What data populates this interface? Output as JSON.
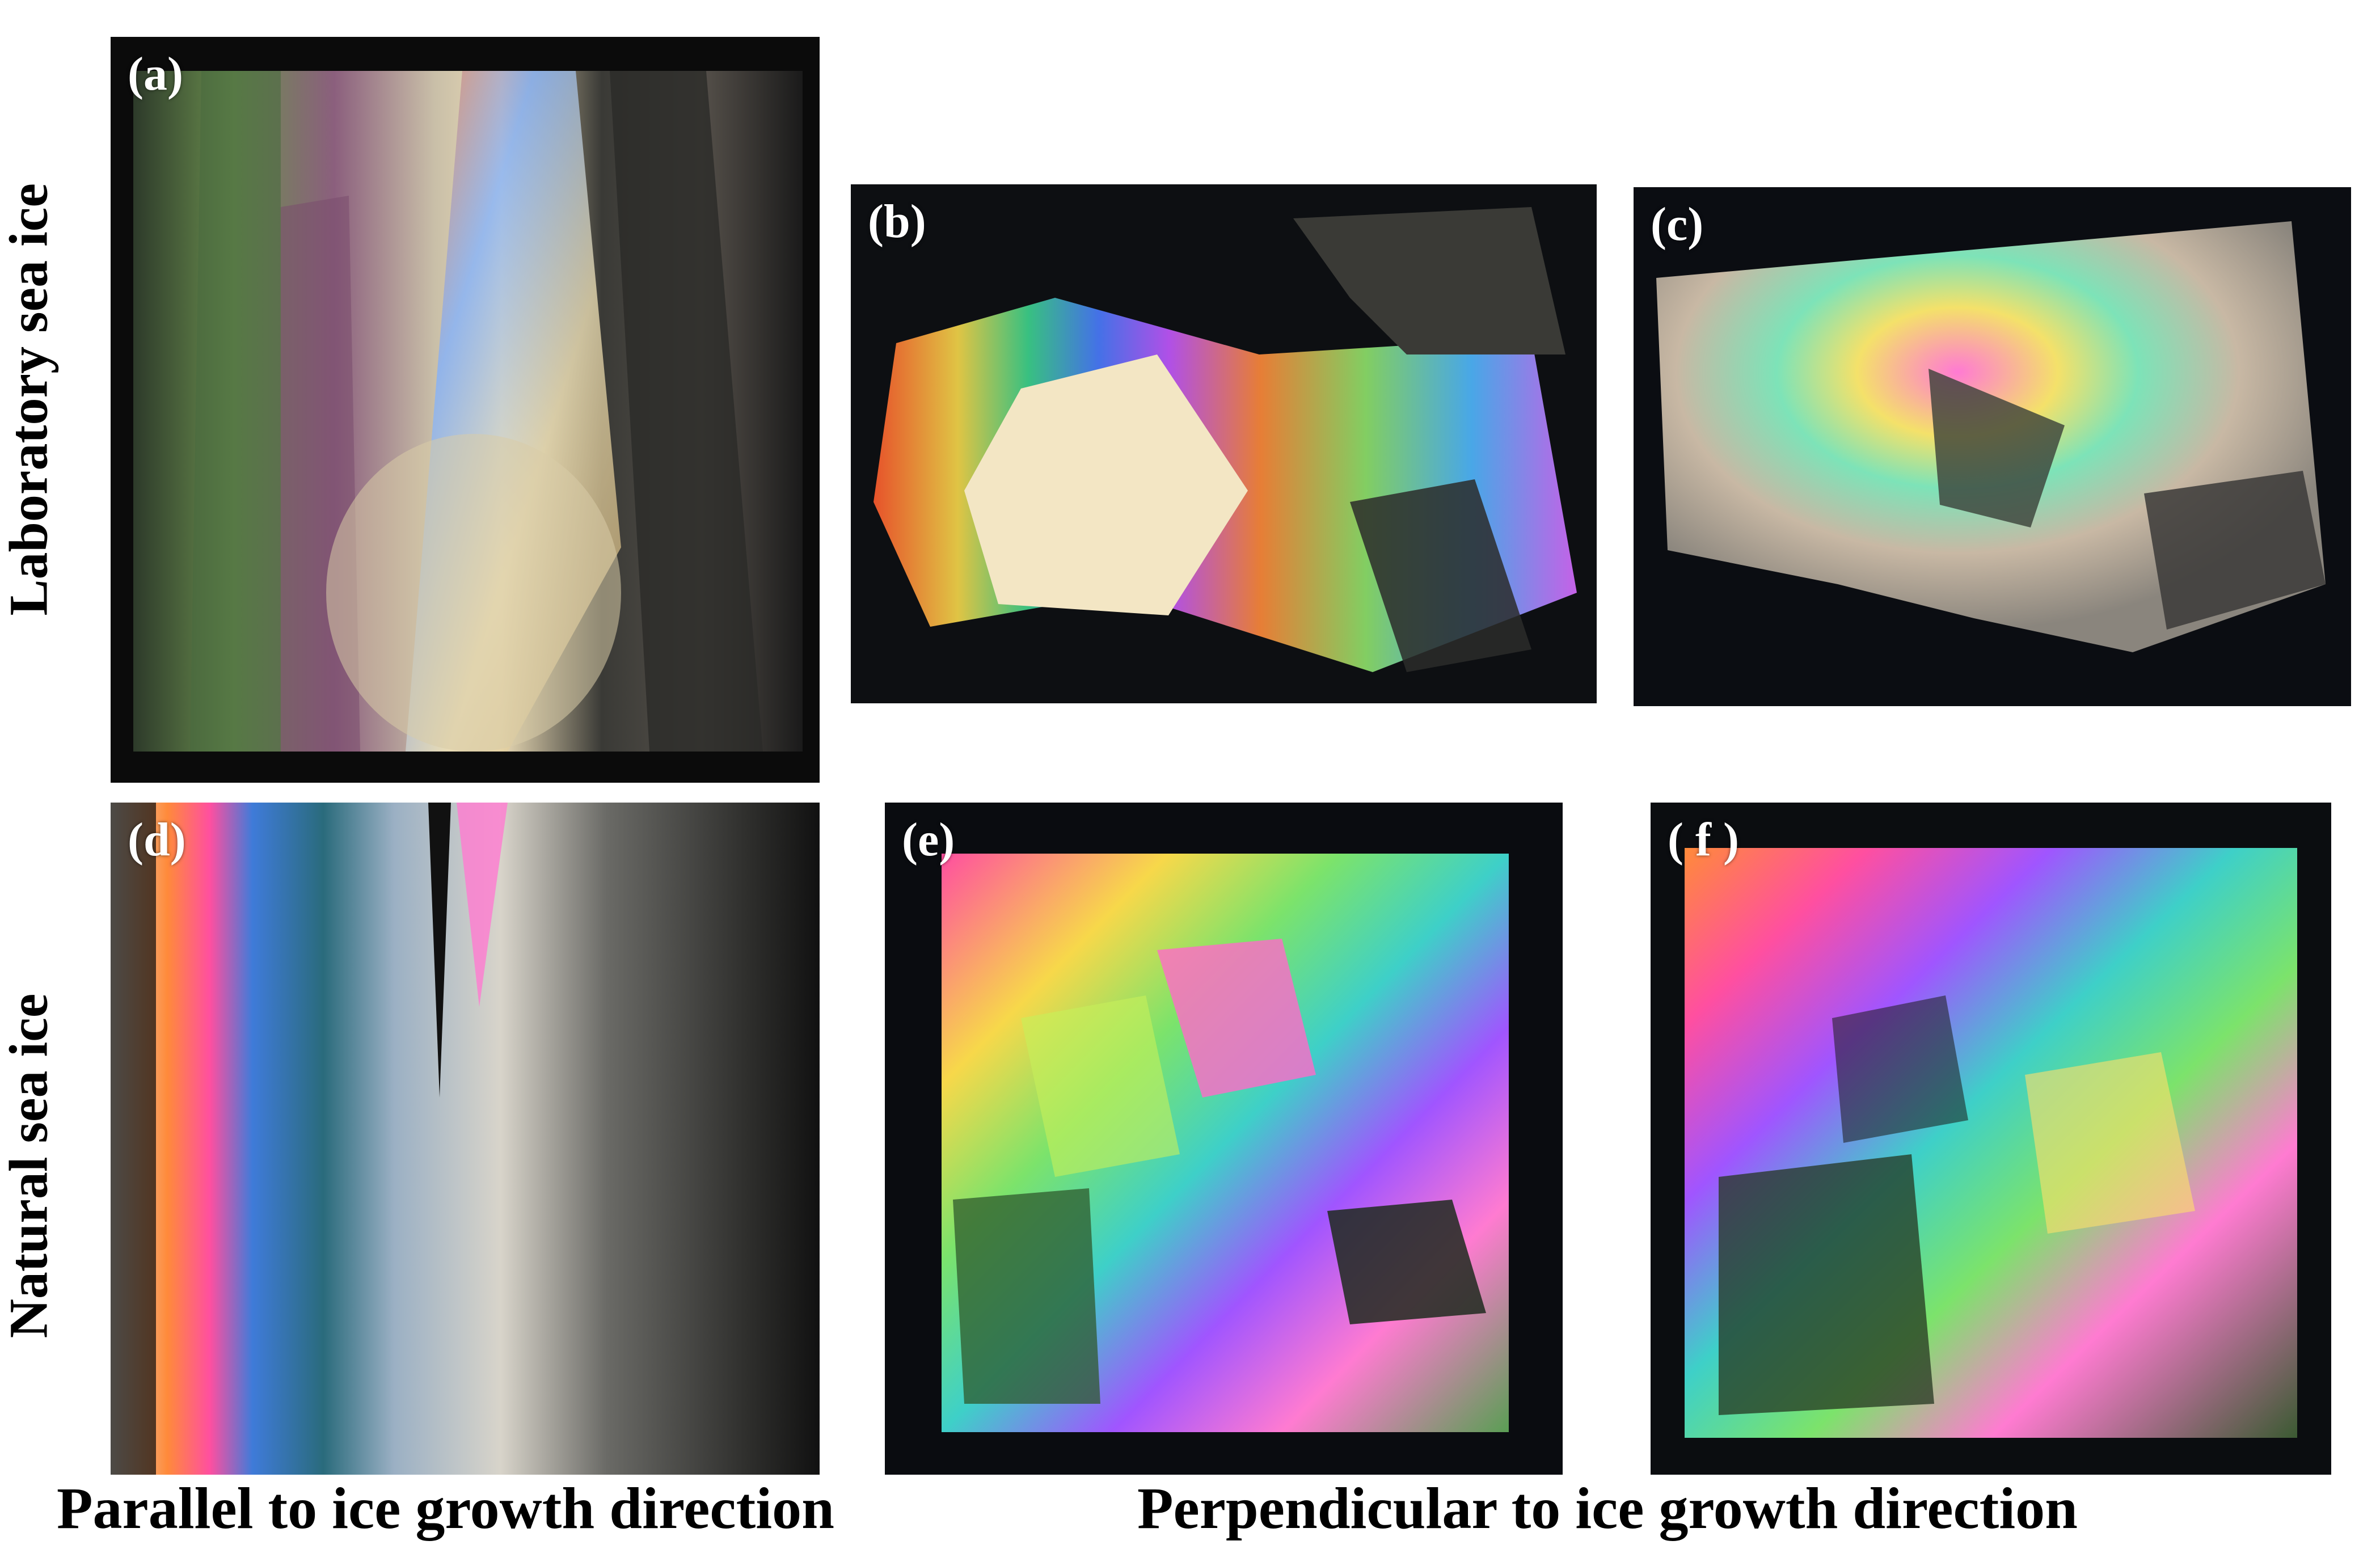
{
  "row_labels": {
    "top": "Laboratory sea ice",
    "bottom": "Natural sea ice"
  },
  "column_labels": {
    "left": "Parallel to ice growth direction",
    "right": "Perpendicular to ice growth direction"
  },
  "panels": {
    "a": "(a)",
    "b": "(b)",
    "c": "(c)",
    "d": "(d)",
    "e": "(e)",
    "f": "( f )"
  }
}
